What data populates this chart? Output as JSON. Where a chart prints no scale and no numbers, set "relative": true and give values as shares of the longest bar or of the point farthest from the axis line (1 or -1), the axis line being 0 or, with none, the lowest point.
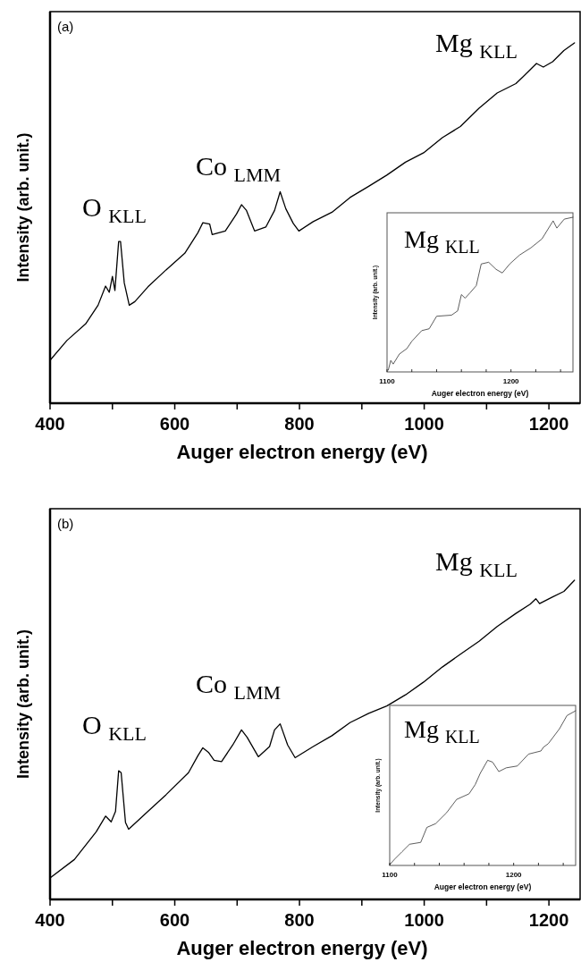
{
  "chart_data": [
    {
      "type": "line",
      "relative": true,
      "title": "(a)",
      "xlabel": "Auger electron energy (eV)",
      "ylabel": "Intensity (arb. unit.)",
      "xlim": [
        400,
        1250
      ],
      "xticks": [
        400,
        {
          "value": 500,
          "label": null
        },
        600,
        {
          "value": 700,
          "label": null
        },
        800,
        {
          "value": 900,
          "label": null
        },
        1000,
        {
          "value": 1100,
          "label": null
        },
        1200
      ],
      "annotations": [
        "O $_{KLL}$",
        "Co $_{LMM}$",
        "Mg $_{KLL}$"
      ],
      "series": [
        {
          "color": "#000000",
          "x": [
            400,
            427,
            457,
            477,
            489,
            495,
            500,
            504,
            510,
            513,
            519,
            527,
            536,
            557,
            586,
            616,
            637,
            645,
            656,
            660,
            681,
            699,
            707,
            715,
            728,
            746,
            760,
            769,
            778,
            790,
            799,
            822,
            852,
            881,
            911,
            940,
            970,
            999,
            1029,
            1058,
            1088,
            1117,
            1147,
            1159,
            1180,
            1191,
            1206,
            1224,
            1241
          ],
          "values": [
            0.119,
            0.174,
            0.22,
            0.272,
            0.325,
            0.308,
            0.352,
            0.313,
            0.449,
            0.449,
            0.334,
            0.272,
            0.282,
            0.323,
            0.37,
            0.416,
            0.473,
            0.501,
            0.497,
            0.468,
            0.478,
            0.525,
            0.551,
            0.535,
            0.478,
            0.489,
            0.535,
            0.587,
            0.54,
            0.499,
            0.478,
            0.504,
            0.53,
            0.571,
            0.602,
            0.633,
            0.669,
            0.695,
            0.737,
            0.768,
            0.819,
            0.861,
            0.887,
            0.907,
            0.943,
            0.933,
            0.948,
            0.979,
            1.0
          ]
        }
      ]
    },
    {
      "type": "line",
      "relative": true,
      "xlabel": "Auger electron energy (eV)",
      "ylabel": "Intensity (arb. unit.)",
      "xlim": [
        1100,
        1250
      ],
      "xticks": [
        1100,
        {
          "value": 1120,
          "label": null
        },
        {
          "value": 1140,
          "label": null
        },
        {
          "value": 1160,
          "label": null
        },
        {
          "value": 1180,
          "label": null
        },
        1200,
        {
          "value": 1220,
          "label": null
        },
        {
          "value": 1240,
          "label": null
        }
      ],
      "annotations": [
        "Mg $_{KLL}$"
      ],
      "series": [
        {
          "color": "#333333",
          "x": [
            1101,
            1103,
            1105,
            1110,
            1116,
            1120,
            1128,
            1134,
            1140,
            1152,
            1157,
            1160,
            1163,
            1167,
            1172,
            1176,
            1182,
            1188,
            1193,
            1199,
            1207,
            1216,
            1225,
            1234,
            1237,
            1243,
            1250
          ],
          "values": [
            0.012,
            0.074,
            0.051,
            0.116,
            0.151,
            0.198,
            0.267,
            0.279,
            0.36,
            0.367,
            0.395,
            0.5,
            0.477,
            0.512,
            0.558,
            0.698,
            0.709,
            0.663,
            0.64,
            0.698,
            0.756,
            0.802,
            0.86,
            0.977,
            0.93,
            0.988,
            1.0
          ]
        }
      ]
    },
    {
      "type": "line",
      "relative": true,
      "title": "(b)",
      "xlabel": "Auger electron energy (eV)",
      "ylabel": "Intensity (arb. unit.)",
      "xlim": [
        400,
        1250
      ],
      "xticks": [
        400,
        {
          "value": 500,
          "label": null
        },
        600,
        {
          "value": 700,
          "label": null
        },
        800,
        {
          "value": 900,
          "label": null
        },
        1000,
        {
          "value": 1100,
          "label": null
        },
        1200
      ],
      "annotations": [
        "O $_{KLL}$",
        "Co $_{LMM}$",
        "Mg $_{KLL}$"
      ],
      "series": [
        {
          "color": "#000000",
          "x": [
            400,
            439,
            474,
            489,
            498,
            505,
            510,
            514,
            521,
            526,
            557,
            586,
            622,
            637,
            645,
            654,
            663,
            675,
            693,
            707,
            716,
            734,
            752,
            760,
            769,
            781,
            793,
            822,
            852,
            881,
            911,
            940,
            970,
            999,
            1029,
            1058,
            1088,
            1117,
            1147,
            1170,
            1179,
            1185,
            1206,
            1224,
            1241
          ],
          "values": [
            0.067,
            0.125,
            0.212,
            0.261,
            0.243,
            0.276,
            0.403,
            0.397,
            0.241,
            0.22,
            0.276,
            0.328,
            0.397,
            0.45,
            0.475,
            0.461,
            0.436,
            0.432,
            0.484,
            0.531,
            0.508,
            0.447,
            0.479,
            0.531,
            0.55,
            0.484,
            0.444,
            0.479,
            0.513,
            0.554,
            0.583,
            0.606,
            0.641,
            0.681,
            0.728,
            0.768,
            0.809,
            0.855,
            0.896,
            0.925,
            0.942,
            0.927,
            0.948,
            0.965,
            1.0
          ]
        }
      ]
    },
    {
      "type": "line",
      "relative": true,
      "xlabel": "Auger electron energy (eV)",
      "ylabel": "Intensity (arb. unit.)",
      "xlim": [
        1100,
        1250
      ],
      "xticks": [
        1100,
        {
          "value": 1120,
          "label": null
        },
        {
          "value": 1140,
          "label": null
        },
        {
          "value": 1160,
          "label": null
        },
        {
          "value": 1180,
          "label": null
        },
        1200,
        {
          "value": 1220,
          "label": null
        },
        {
          "value": 1240,
          "label": null
        }
      ],
      "annotations": [
        "Mg $_{KLL}$"
      ],
      "series": [
        {
          "color": "#333333",
          "x": [
            1100,
            1104,
            1110,
            1116,
            1125,
            1130,
            1137,
            1146,
            1154,
            1164,
            1169,
            1173,
            1179,
            1183,
            1188,
            1194,
            1203,
            1212,
            1222,
            1224,
            1228,
            1237,
            1243,
            1250
          ],
          "values": [
            0.005,
            0.041,
            0.089,
            0.137,
            0.149,
            0.246,
            0.27,
            0.342,
            0.427,
            0.463,
            0.523,
            0.595,
            0.68,
            0.668,
            0.607,
            0.631,
            0.643,
            0.72,
            0.74,
            0.764,
            0.788,
            0.884,
            0.969,
            1.0
          ]
        }
      ]
    }
  ]
}
